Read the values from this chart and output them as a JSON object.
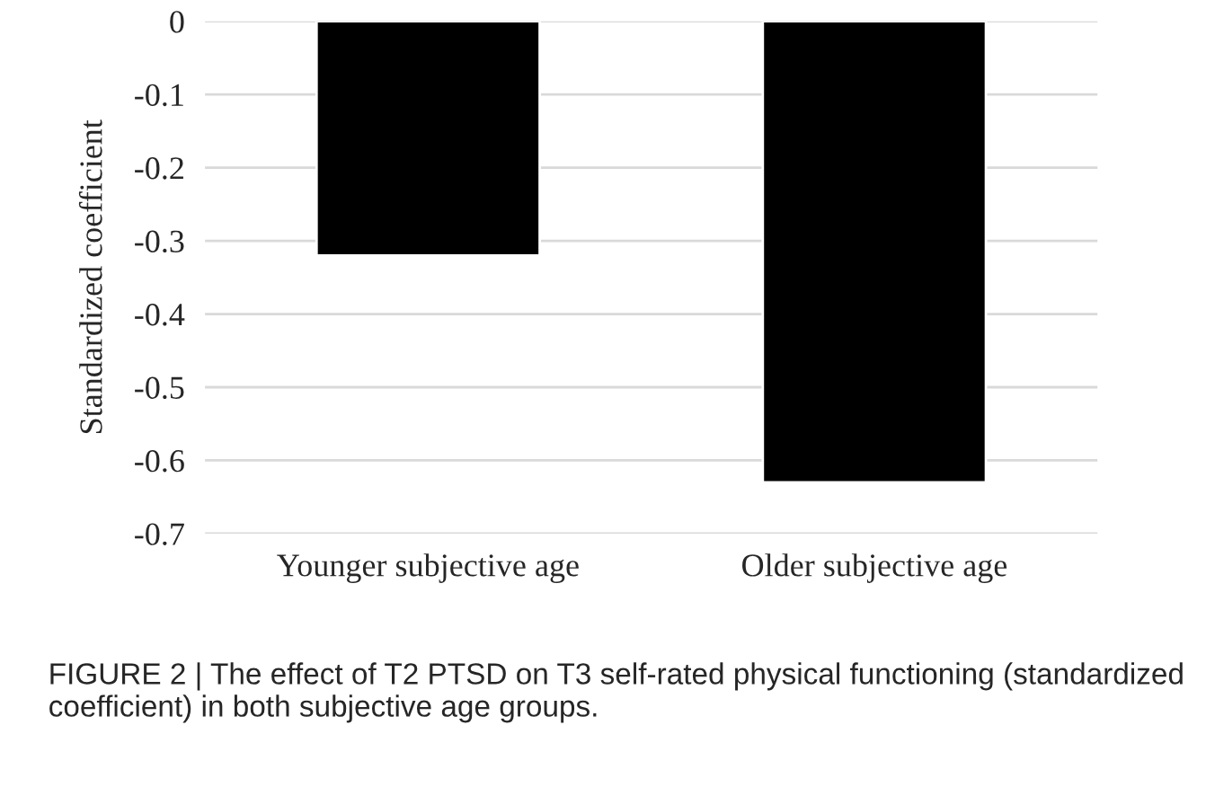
{
  "chart_data": {
    "type": "bar",
    "categories": [
      "Younger subjective age",
      "Older subjective age"
    ],
    "values": [
      -0.32,
      -0.63
    ],
    "color": "#000000",
    "ylabel": "Standardized coefficient",
    "ylim": [
      -0.7,
      0
    ],
    "yticks": [
      0,
      -0.1,
      -0.2,
      -0.3,
      -0.4,
      -0.5,
      -0.6,
      -0.7
    ],
    "grid": "y",
    "annotations": [
      "FIGURE 2 | The effect of T2 PTSD on T3 self-rated physical functioning (standardized coefficient) in both subjective age groups."
    ]
  }
}
